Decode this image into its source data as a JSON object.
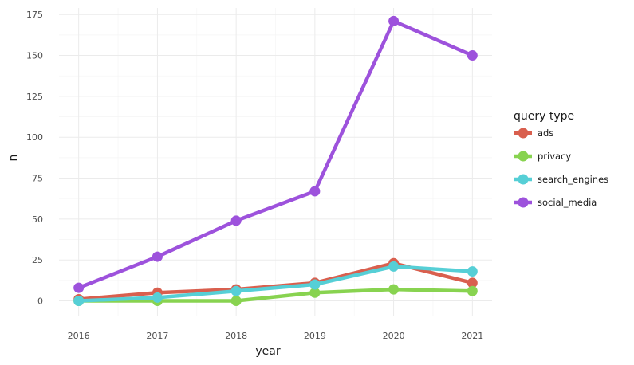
{
  "chart_data": {
    "type": "line",
    "title": "",
    "xlabel": "year",
    "ylabel": "n",
    "x": [
      2016,
      2017,
      2018,
      2019,
      2020,
      2021
    ],
    "xticks": [
      "2016",
      "2017",
      "2018",
      "2019",
      "2020",
      "2021"
    ],
    "yticks": [
      "0",
      "25",
      "50",
      "75",
      "100",
      "125",
      "150",
      "175"
    ],
    "xlim": [
      2015.75,
      2021.25
    ],
    "ylim": [
      -9,
      179
    ],
    "grid": true,
    "legend": {
      "title": "query type",
      "position": "right"
    },
    "series": [
      {
        "name": "ads",
        "color": "#d95f4e",
        "values": [
          1,
          5,
          7,
          11,
          23,
          11
        ]
      },
      {
        "name": "privacy",
        "color": "#88d350",
        "values": [
          0,
          0,
          0,
          5,
          7,
          6
        ]
      },
      {
        "name": "search_engines",
        "color": "#56cfd6",
        "values": [
          0,
          2,
          6,
          10,
          21,
          18
        ]
      },
      {
        "name": "social_media",
        "color": "#9d52dc",
        "values": [
          8,
          27,
          49,
          67,
          171,
          150
        ]
      }
    ]
  }
}
